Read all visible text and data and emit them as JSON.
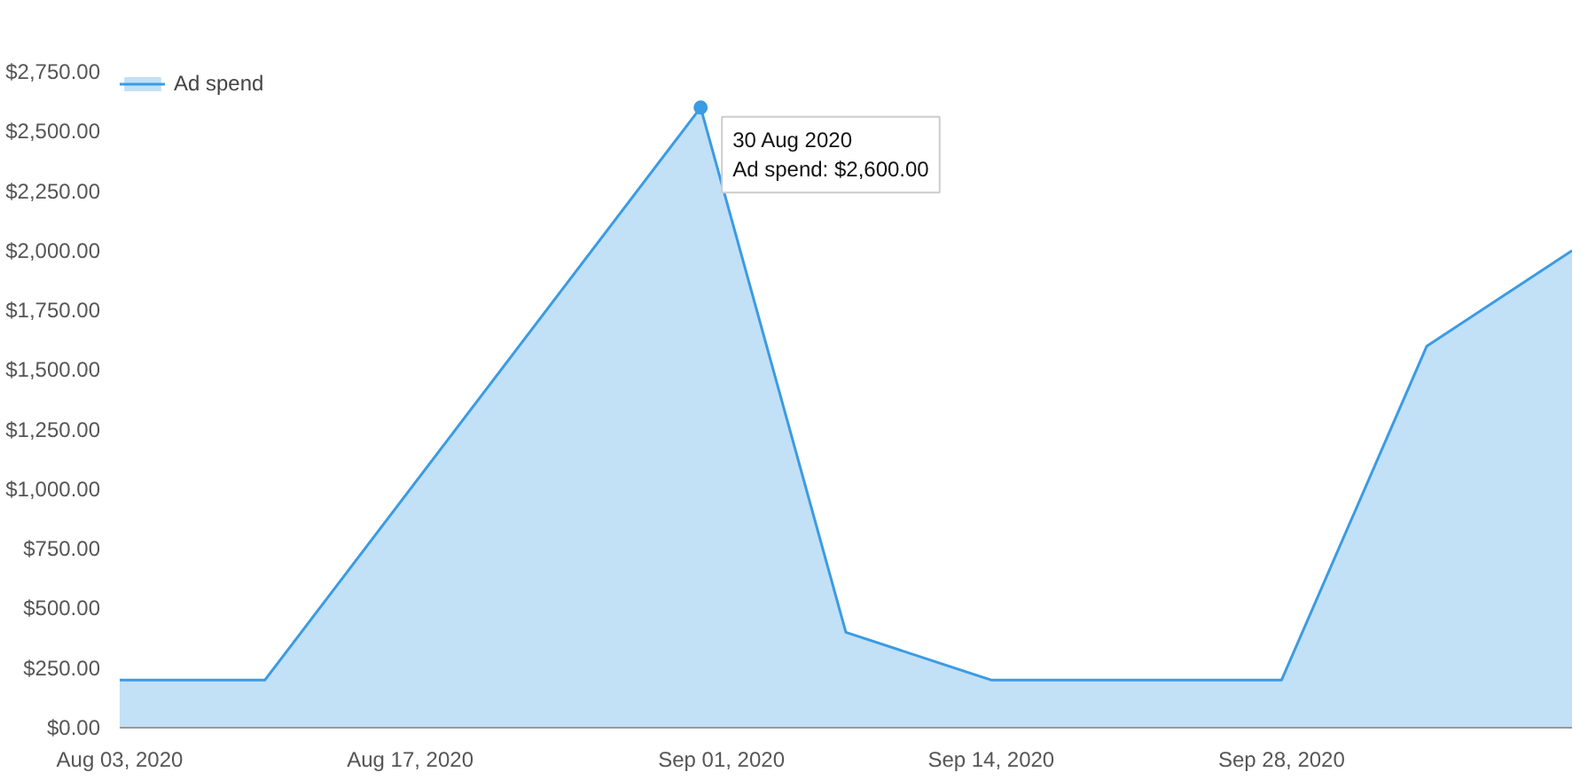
{
  "chart_data": {
    "type": "area",
    "x": [
      "2020-08-03",
      "2020-08-10",
      "2020-08-31",
      "2020-09-07",
      "2020-09-14",
      "2020-09-28",
      "2020-10-05",
      "2020-10-12"
    ],
    "series": [
      {
        "name": "Ad spend",
        "color": "#3b9be3",
        "values": [
          200,
          200,
          2600,
          400,
          200,
          200,
          1600,
          2000
        ]
      }
    ],
    "xlim": [
      "2020-08-03",
      "2020-10-12"
    ],
    "xticks": [
      {
        "value": "2020-08-03",
        "label": "Aug 03, 2020"
      },
      {
        "value": "2020-08-17",
        "label": "Aug 17, 2020"
      },
      {
        "value": "2020-09-01",
        "label": "Sep 01, 2020"
      },
      {
        "value": "2020-09-14",
        "label": "Sep 14, 2020"
      },
      {
        "value": "2020-09-28",
        "label": "Sep 28, 2020"
      }
    ],
    "ylim": [
      0,
      2750
    ],
    "yticks": [
      {
        "value": 0,
        "label": "$0.00"
      },
      {
        "value": 250,
        "label": "$250.00"
      },
      {
        "value": 500,
        "label": "$500.00"
      },
      {
        "value": 750,
        "label": "$750.00"
      },
      {
        "value": 1000,
        "label": "$1,000.00"
      },
      {
        "value": 1250,
        "label": "$1,250.00"
      },
      {
        "value": 1500,
        "label": "$1,500.00"
      },
      {
        "value": 1750,
        "label": "$1,750.00"
      },
      {
        "value": 2000,
        "label": "$2,000.00"
      },
      {
        "value": 2250,
        "label": "$2,250.00"
      },
      {
        "value": 2500,
        "label": "$2,500.00"
      },
      {
        "value": 2750,
        "label": "$2,750.00"
      }
    ],
    "annotations": [
      {
        "text": "30 Aug 2020\nAd spend: $2,600.00",
        "x": "2020-08-31",
        "y": 2600
      }
    ],
    "legend": "top left",
    "grid": false
  }
}
